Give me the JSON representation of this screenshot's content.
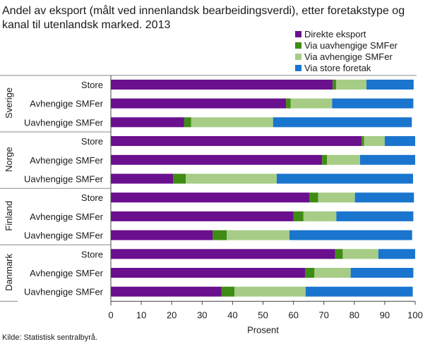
{
  "chart_data": {
    "type": "bar",
    "orientation": "horizontal",
    "stacked": true,
    "title_lines": [
      "Andel av eksport (målt ved innenlandsk bearbeidingsverdi), etter foretakstype og",
      "kanal til utenlandsk marked. 2013"
    ],
    "xlabel": "Prosent",
    "xlim": [
      0,
      100
    ],
    "xticks": [
      "0",
      "10",
      "20",
      "30",
      "40",
      "50",
      "60",
      "70",
      "80",
      "90",
      "100"
    ],
    "grid": false,
    "legend_position": "top-right",
    "source": "Kilde: Statistisk sentralbyrå.",
    "series": [
      {
        "name": "Direkte eksport",
        "color": "#6a0f8e"
      },
      {
        "name": "Via uavhengige SMFer",
        "color": "#3f8c14"
      },
      {
        "name": "Via avhengige SMFer",
        "color": "#a6cc86"
      },
      {
        "name": "Via store foretak",
        "color": "#1a75cf"
      }
    ],
    "groups": [
      {
        "name": "Sverige",
        "bars": [
          {
            "label": "Store",
            "values": [
              72.9,
              1.1,
              10.0,
              15.5
            ]
          },
          {
            "label": "Avhengige SMFer",
            "values": [
              57.6,
              1.5,
              13.6,
              26.7
            ]
          },
          {
            "label": "Uavhengige SMFer",
            "values": [
              24.1,
              2.3,
              26.9,
              45.6
            ]
          }
        ]
      },
      {
        "name": "Norge",
        "bars": [
          {
            "label": "Store",
            "values": [
              82.4,
              0.8,
              6.8,
              10.0
            ]
          },
          {
            "label": "Avhengige SMFer",
            "values": [
              69.4,
              1.6,
              10.9,
              18.1
            ]
          },
          {
            "label": "Uavhengige SMFer",
            "values": [
              20.5,
              4.1,
              29.9,
              44.8
            ]
          }
        ]
      },
      {
        "name": "Finland",
        "bars": [
          {
            "label": "Store",
            "values": [
              65.2,
              2.9,
              12.1,
              19.4
            ]
          },
          {
            "label": "Avhengige SMFer",
            "values": [
              60.0,
              3.3,
              10.8,
              25.3
            ]
          },
          {
            "label": "Uavhengige SMFer",
            "values": [
              33.5,
              4.6,
              20.6,
              40.3
            ]
          }
        ]
      },
      {
        "name": "Danmark",
        "bars": [
          {
            "label": "Store",
            "values": [
              73.7,
              2.5,
              11.7,
              12.1
            ]
          },
          {
            "label": "Avhengige SMFer",
            "values": [
              63.8,
              3.1,
              11.9,
              20.6
            ]
          },
          {
            "label": "Uavhengige SMFer",
            "values": [
              36.4,
              4.2,
              23.4,
              35.2
            ]
          }
        ]
      }
    ]
  }
}
